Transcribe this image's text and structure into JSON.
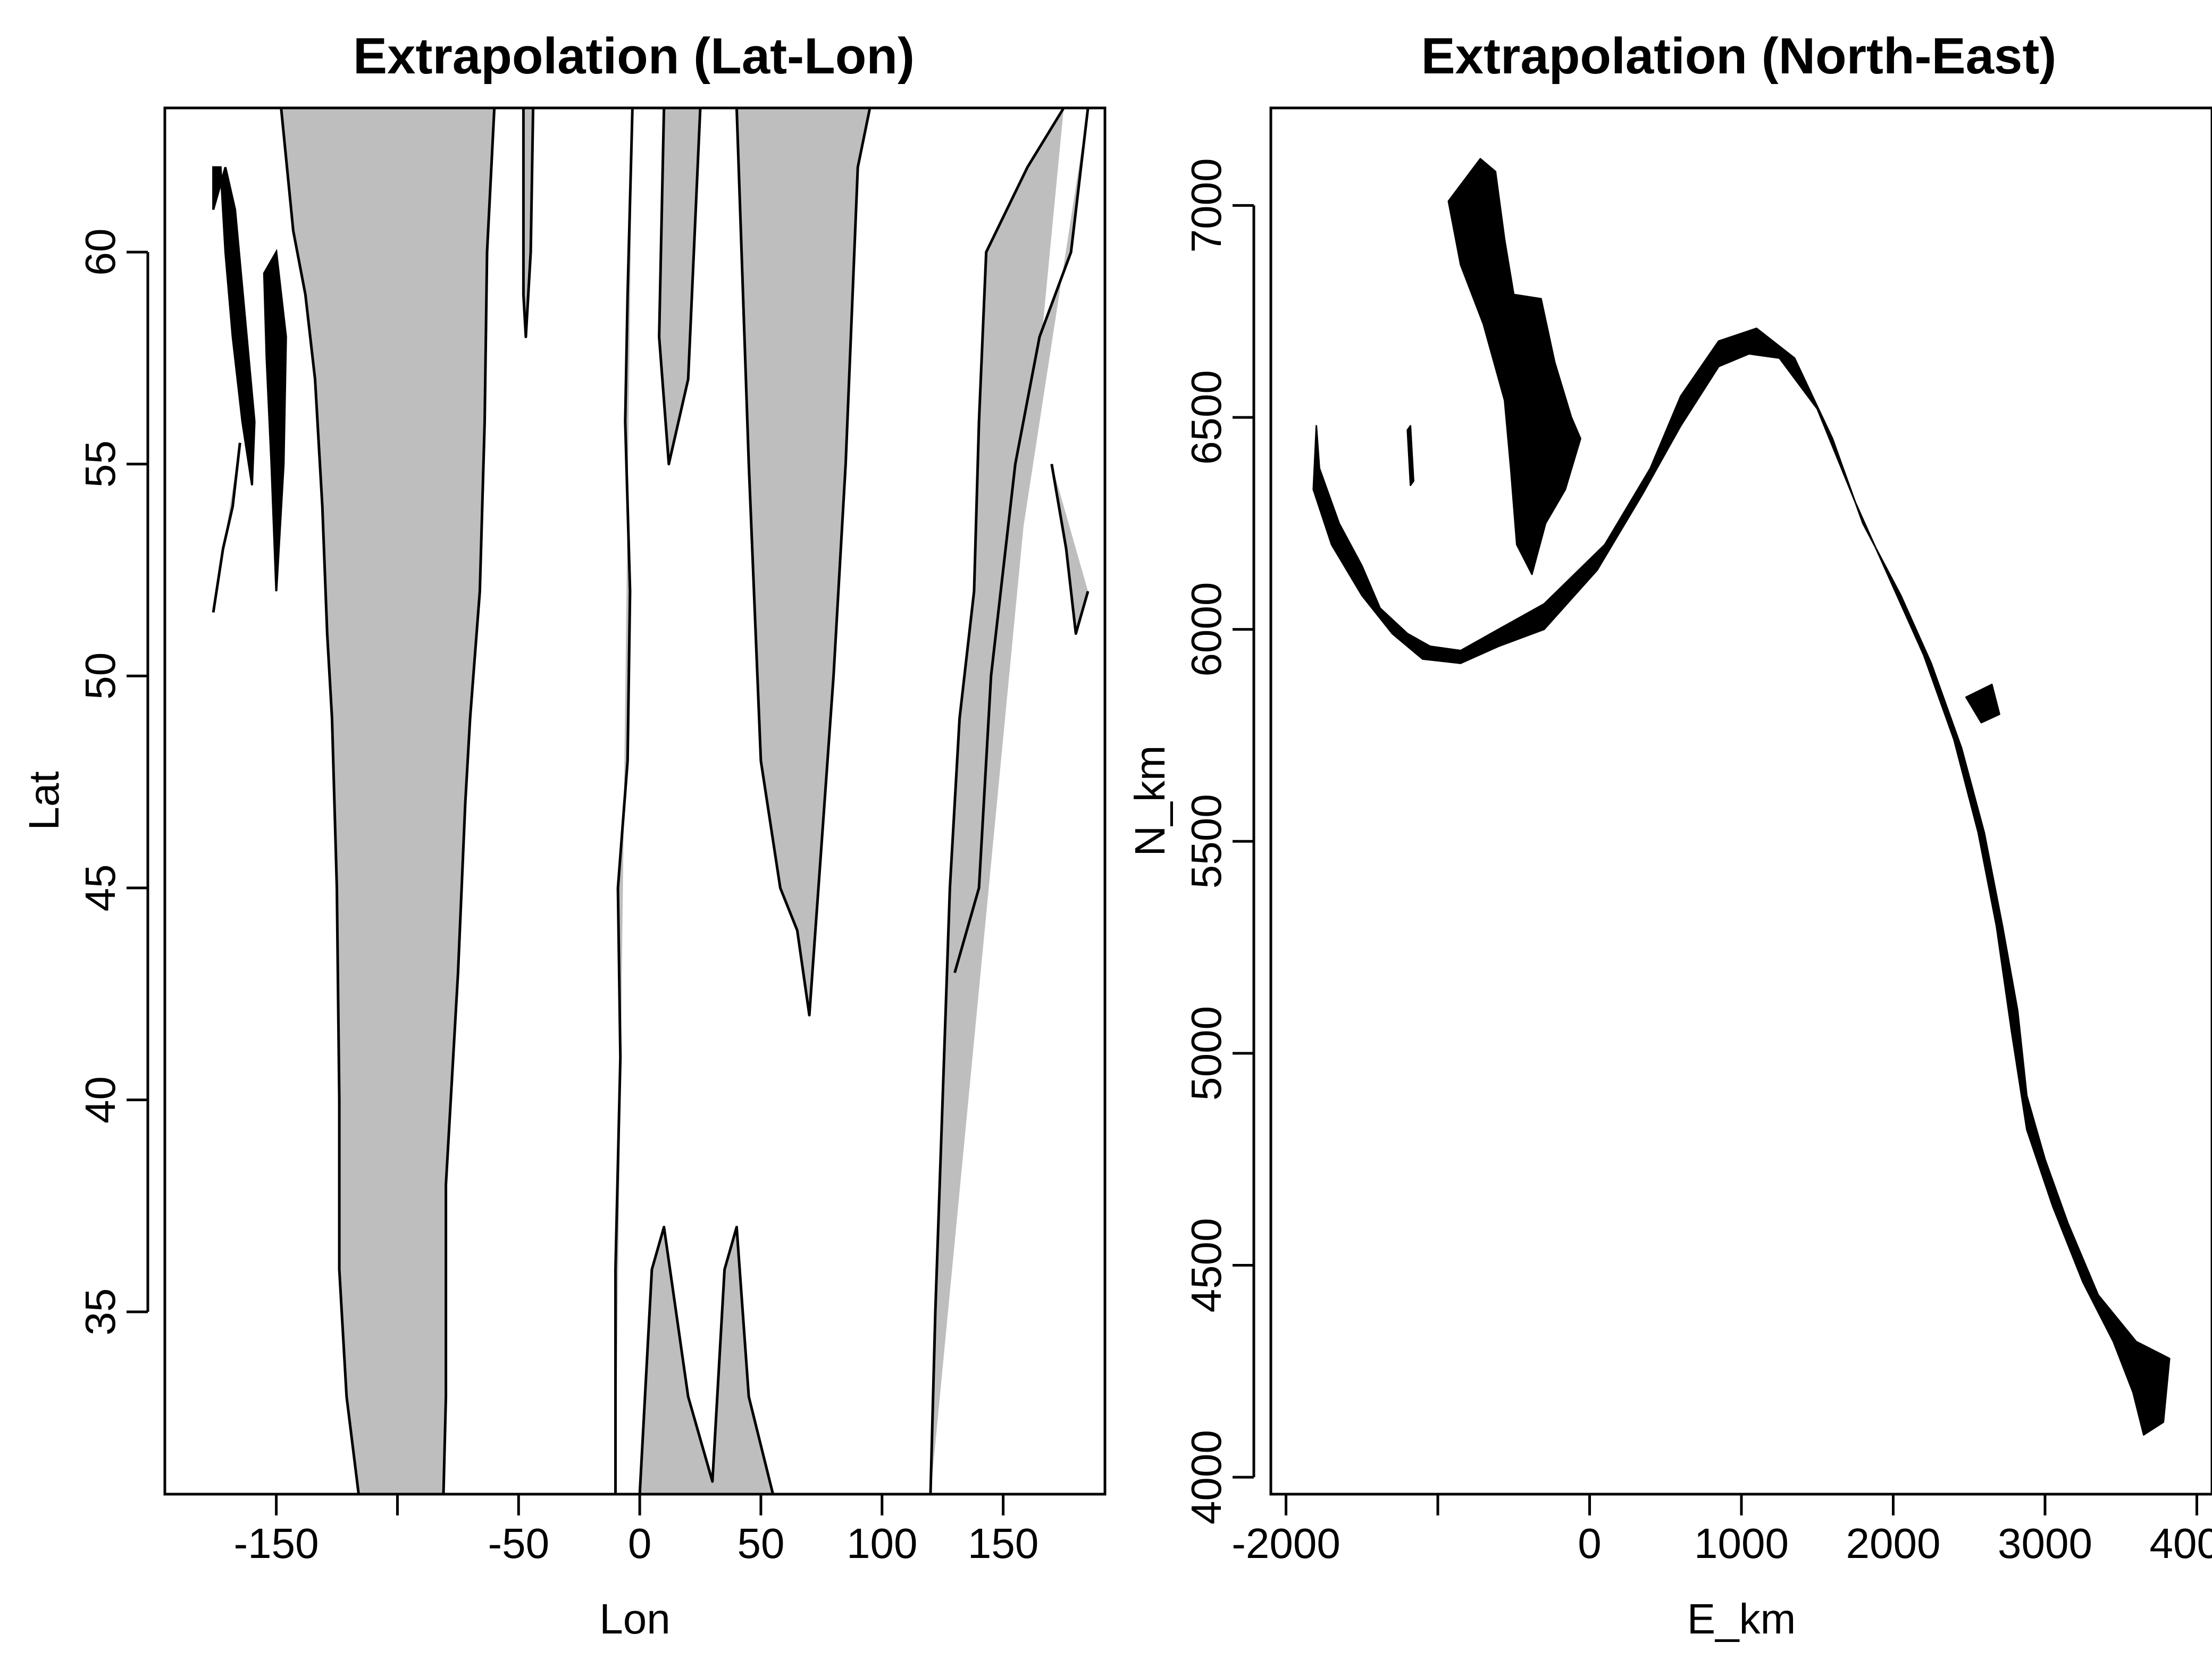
{
  "colors": {
    "land": "#bebebe",
    "sea": "#ffffff",
    "outline": "#000000",
    "extrapolation": "#000000"
  },
  "chart_data": [
    {
      "type": "map",
      "title": "Extrapolation (Lat-Lon)",
      "xlabel": "Lon",
      "ylabel": "Lat",
      "xlim": [
        -196,
        192
      ],
      "ylim": [
        30.7,
        63.4
      ],
      "xticks": [
        -150,
        -100,
        -50,
        0,
        50,
        100,
        150
      ],
      "xtick_labels": [
        "-150",
        "",
        "-50",
        "0",
        "50",
        "100",
        "150"
      ],
      "yticks": [
        35,
        40,
        45,
        50,
        55,
        60
      ],
      "ytick_labels": [
        "35",
        "40",
        "45",
        "50",
        "55",
        "60"
      ],
      "grid": false,
      "land_outlines": [
        [
          [
            -148,
            63.4
          ],
          [
            -143,
            60.5
          ],
          [
            -138,
            59
          ],
          [
            -134,
            57
          ],
          [
            -131,
            54
          ],
          [
            -129,
            51
          ],
          [
            -127,
            49
          ],
          [
            -125,
            45
          ],
          [
            -124,
            40
          ],
          [
            -124,
            36
          ],
          [
            -121,
            33
          ],
          [
            -116,
            30.7
          ],
          [
            -81,
            30.7
          ],
          [
            -80,
            33
          ],
          [
            -80,
            38
          ],
          [
            -75,
            43
          ],
          [
            -72,
            47
          ],
          [
            -70,
            49
          ],
          [
            -66,
            52
          ],
          [
            -64,
            56
          ],
          [
            -63,
            60
          ],
          [
            -60,
            63.4
          ]
        ],
        [
          [
            -44,
            63.4
          ],
          [
            -45,
            60
          ],
          [
            -47,
            58
          ],
          [
            -48,
            59
          ],
          [
            -48,
            63.4
          ]
        ],
        [
          [
            -10,
            30.7
          ],
          [
            -10,
            36
          ],
          [
            -8,
            41
          ],
          [
            -9,
            45
          ],
          [
            -5,
            48
          ],
          [
            -4,
            52
          ],
          [
            -6,
            56
          ],
          [
            -5,
            59
          ],
          [
            -3,
            63.4
          ]
        ],
        [
          [
            10,
            63.4
          ],
          [
            8,
            58
          ],
          [
            12,
            55
          ],
          [
            20,
            57
          ],
          [
            25,
            63.4
          ]
        ],
        [
          [
            120,
            30.7
          ],
          [
            122,
            35
          ],
          [
            125,
            40
          ],
          [
            128,
            45
          ],
          [
            132,
            49
          ],
          [
            138,
            52
          ],
          [
            140,
            56
          ],
          [
            143,
            60
          ],
          [
            160,
            62
          ],
          [
            175,
            63.4
          ]
        ],
        [
          [
            0,
            30.7
          ],
          [
            5,
            36
          ],
          [
            10,
            37
          ],
          [
            20,
            33
          ],
          [
            30,
            31
          ],
          [
            35,
            36
          ],
          [
            40,
            37
          ],
          [
            45,
            33
          ],
          [
            55,
            30.7
          ]
        ],
        [
          [
            40,
            63.4
          ],
          [
            45,
            55
          ],
          [
            50,
            48
          ],
          [
            58,
            45
          ],
          [
            65,
            44
          ],
          [
            70,
            42
          ],
          [
            75,
            46
          ],
          [
            80,
            50
          ],
          [
            85,
            55
          ],
          [
            90,
            62
          ],
          [
            95,
            63.4
          ]
        ],
        [
          [
            130,
            43
          ],
          [
            140,
            45
          ],
          [
            145,
            50
          ],
          [
            155,
            55
          ],
          [
            165,
            58
          ],
          [
            178,
            60
          ],
          [
            185,
            63.4
          ]
        ],
        [
          [
            170,
            55
          ],
          [
            176,
            53
          ],
          [
            180,
            51
          ],
          [
            185,
            52
          ]
        ],
        [
          [
            -176,
            51.5
          ],
          [
            -172,
            53
          ],
          [
            -168,
            54
          ],
          [
            -165,
            55.5
          ]
        ]
      ],
      "extrapolation_regions": [
        [
          [
            -176,
            62
          ],
          [
            -173,
            62
          ],
          [
            -171,
            60
          ],
          [
            -168,
            58
          ],
          [
            -164,
            56
          ],
          [
            -160,
            54.5
          ],
          [
            -159,
            56
          ],
          [
            -163,
            58.5
          ],
          [
            -167,
            61
          ],
          [
            -171,
            62
          ],
          [
            -176,
            61
          ]
        ],
        [
          [
            -155,
            59.5
          ],
          [
            -150,
            60
          ],
          [
            -146,
            58
          ],
          [
            -147,
            55
          ],
          [
            -150,
            52
          ],
          [
            -152,
            55
          ],
          [
            -154,
            57.5
          ]
        ]
      ]
    },
    {
      "type": "scatter",
      "title": "Extrapolation (North-East)",
      "xlabel": "E_km",
      "ylabel": "N_km",
      "xlim": [
        -2100,
        4100
      ],
      "ylim": [
        3960,
        7230
      ],
      "xticks": [
        -2000,
        -1000,
        0,
        1000,
        2000,
        3000,
        4000
      ],
      "xtick_labels": [
        "-2000",
        "",
        "0",
        "1000",
        "2000",
        "3000",
        "4000"
      ],
      "yticks": [
        4000,
        4500,
        5000,
        5500,
        6000,
        6500,
        7000
      ],
      "ytick_labels": [
        "4000",
        "4500",
        "5000",
        "5500",
        "6000",
        "6500",
        "7000"
      ],
      "grid": false,
      "regions": [
        {
          "name": "",
          "polygon": [
            [
              -930,
              7010
            ],
            [
              -720,
              7110
            ],
            [
              -620,
              7080
            ],
            [
              -560,
              6920
            ],
            [
              -500,
              6790
            ],
            [
              -320,
              6780
            ],
            [
              -230,
              6630
            ],
            [
              -120,
              6500
            ],
            [
              -60,
              6450
            ],
            [
              -160,
              6330
            ],
            [
              -290,
              6250
            ],
            [
              -380,
              6130
            ],
            [
              -480,
              6200
            ],
            [
              -520,
              6380
            ],
            [
              -560,
              6540
            ],
            [
              -700,
              6720
            ],
            [
              -850,
              6860
            ]
          ]
        },
        {
          "name": "",
          "polygon": [
            [
              -1800,
              6480
            ],
            [
              -1780,
              6380
            ],
            [
              -1650,
              6250
            ],
            [
              -1500,
              6150
            ],
            [
              -1380,
              6050
            ],
            [
              -1200,
              5990
            ],
            [
              -1050,
              5960
            ],
            [
              -850,
              5950
            ],
            [
              -600,
              6000
            ],
            [
              -300,
              6060
            ],
            [
              100,
              6200
            ],
            [
              400,
              6380
            ],
            [
              600,
              6550
            ],
            [
              850,
              6680
            ],
            [
              1100,
              6710
            ],
            [
              1350,
              6640
            ],
            [
              1600,
              6450
            ],
            [
              1800,
              6250
            ],
            [
              2050,
              6080
            ],
            [
              2250,
              5920
            ],
            [
              2450,
              5720
            ],
            [
              2600,
              5520
            ],
            [
              2720,
              5300
            ],
            [
              2820,
              5100
            ],
            [
              2880,
              4900
            ],
            [
              3000,
              4750
            ],
            [
              3150,
              4600
            ],
            [
              3350,
              4430
            ],
            [
              3600,
              4320
            ],
            [
              3820,
              4280
            ],
            [
              3780,
              4130
            ],
            [
              3650,
              4100
            ],
            [
              3580,
              4200
            ],
            [
              3450,
              4320
            ],
            [
              3250,
              4460
            ],
            [
              3050,
              4640
            ],
            [
              2880,
              4820
            ],
            [
              2780,
              5050
            ],
            [
              2680,
              5300
            ],
            [
              2560,
              5520
            ],
            [
              2400,
              5740
            ],
            [
              2200,
              5940
            ],
            [
              2000,
              6100
            ],
            [
              1750,
              6300
            ],
            [
              1500,
              6520
            ],
            [
              1250,
              6640
            ],
            [
              1050,
              6650
            ],
            [
              850,
              6620
            ],
            [
              600,
              6480
            ],
            [
              350,
              6320
            ],
            [
              50,
              6140
            ],
            [
              -300,
              6000
            ],
            [
              -600,
              5960
            ],
            [
              -850,
              5920
            ],
            [
              -1100,
              5930
            ],
            [
              -1300,
              5990
            ],
            [
              -1500,
              6080
            ],
            [
              -1700,
              6200
            ],
            [
              -1820,
              6330
            ]
          ]
        },
        {
          "name": "",
          "polygon": [
            [
              2480,
              5840
            ],
            [
              2650,
              5870
            ],
            [
              2700,
              5800
            ],
            [
              2580,
              5780
            ]
          ]
        },
        {
          "name": "",
          "polygon": [
            [
              -1200,
              6470
            ],
            [
              -1180,
              6480
            ],
            [
              -1160,
              6350
            ],
            [
              -1180,
              6340
            ]
          ]
        }
      ]
    }
  ]
}
